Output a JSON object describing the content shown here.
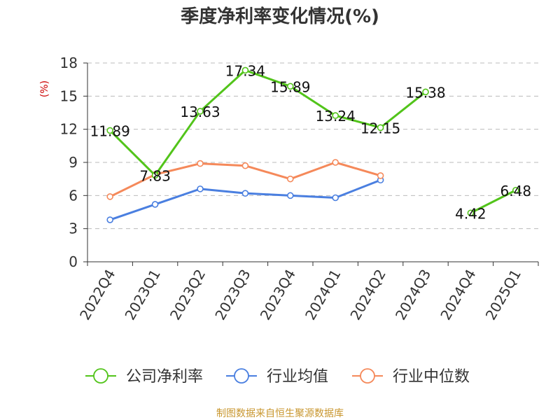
{
  "chart_data": {
    "type": "line",
    "title": "季度净利率变化情况(%)",
    "ylabel": "(%)",
    "xlabel": "",
    "ylim": [
      0,
      18
    ],
    "yticks": [
      0,
      3,
      6,
      9,
      12,
      15,
      18
    ],
    "grid": true,
    "legend_position": "bottom",
    "categories": [
      "2022Q4",
      "2023Q1",
      "2023Q2",
      "2023Q3",
      "2023Q4",
      "2024Q1",
      "2024Q2",
      "2024Q3",
      "2024Q4",
      "2025Q1"
    ],
    "series": [
      {
        "name": "公司净利率",
        "color": "#52c41a",
        "show_labels": true,
        "segments": [
          [
            0,
            7
          ],
          [
            8,
            9
          ]
        ],
        "values": [
          11.89,
          7.83,
          13.63,
          17.34,
          15.89,
          13.24,
          12.15,
          15.38,
          4.42,
          6.48
        ]
      },
      {
        "name": "行业均值",
        "color": "#4a7fe0",
        "show_labels": false,
        "segments": [
          [
            0,
            6
          ]
        ],
        "values": [
          3.8,
          5.2,
          6.6,
          6.2,
          6.0,
          5.8,
          7.4,
          null,
          null,
          null
        ]
      },
      {
        "name": "行业中位数",
        "color": "#f5895a",
        "show_labels": false,
        "segments": [
          [
            0,
            6
          ]
        ],
        "values": [
          5.9,
          7.9,
          8.9,
          8.7,
          7.5,
          9.0,
          7.8,
          null,
          null,
          null
        ]
      }
    ]
  },
  "footer": {
    "source": "制图数据来自恒生聚源数据库",
    "source_color": "#c8962e"
  },
  "colors": {
    "unit_label": "#cc0000",
    "axis": "#333333",
    "grid": "#bbbbbb"
  }
}
